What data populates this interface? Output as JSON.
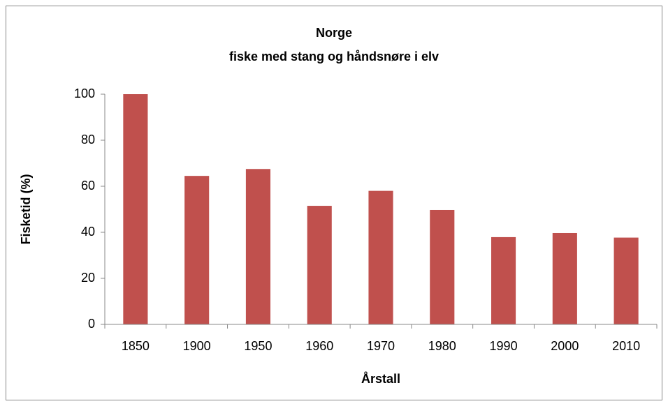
{
  "chart_data": {
    "type": "bar",
    "title": "Norge",
    "subtitle": "fiske med stang og håndsnøre i elv",
    "x_label": "Årstall",
    "y_label": "Fisketid (%)",
    "categories": [
      "1850",
      "1900",
      "1950",
      "1960",
      "1970",
      "1980",
      "1990",
      "2000",
      "2010"
    ],
    "values": [
      100,
      64.5,
      67.5,
      51.5,
      58,
      49.7,
      37.9,
      39.7,
      37.7
    ],
    "color": "#c0504d",
    "ylim": [
      0,
      100
    ],
    "yticks": [
      0,
      20,
      40,
      60,
      80,
      100
    ],
    "grid": false
  }
}
